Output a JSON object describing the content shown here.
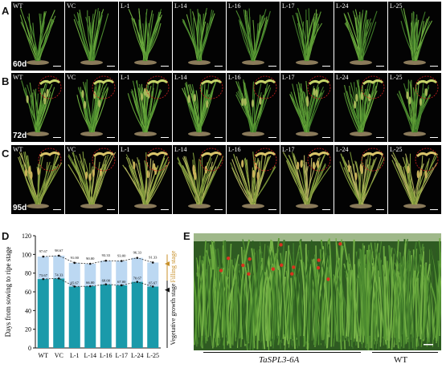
{
  "panels": {
    "A": {
      "letter": "A",
      "day": "60d",
      "labels": [
        "WT",
        "VC",
        "L-1",
        "L-14",
        "L-16",
        "L-17",
        "L-24",
        "L-25"
      ]
    },
    "B": {
      "letter": "B",
      "day": "72d",
      "labels": [
        "WT",
        "VC",
        "L-1",
        "L-14",
        "L-16",
        "L-17",
        "L-24",
        "L-25"
      ]
    },
    "C": {
      "letter": "C",
      "day": "95d",
      "labels": [
        "WT",
        "VC",
        "L-1",
        "L-14",
        "L-16",
        "L-17",
        "L-24",
        "L-25"
      ]
    },
    "D": {
      "letter": "D"
    },
    "E": {
      "letter": "E",
      "caption_left": "TaSPL3-6A",
      "caption_right": "WT"
    }
  },
  "chart_data": {
    "type": "bar",
    "stacked": true,
    "categories": [
      "WT",
      "VC",
      "L-1",
      "L-14",
      "L-16",
      "L-17",
      "L-24",
      "L-25"
    ],
    "series": [
      {
        "name": "Vegetative growth stage",
        "values": [
          73.67,
          74.33,
          65.67,
          66.0,
          68.0,
          67.0,
          70.67,
          65.67
        ],
        "color": "#1a9aaa"
      },
      {
        "name": "Filling stage",
        "values": [
          24.0,
          24.34,
          25.33,
          24.0,
          25.33,
          26.0,
          25.66,
          25.66
        ],
        "color": "#bcd8f2"
      }
    ],
    "top_labels": [
      "97.67",
      "98.67",
      "91.00",
      "90.00",
      "93.33",
      "93.00",
      "96.33",
      "91.33"
    ],
    "bottom_labels": [
      "73.67",
      "74.33",
      "65.67",
      "66.00",
      "68.00",
      "67.00",
      "70.67",
      "65.67"
    ],
    "ylabel": "Days from sowing to ripe stage",
    "yticks": [
      0,
      20,
      40,
      60,
      80,
      100,
      120
    ],
    "ylim": [
      0,
      120
    ],
    "right_labels": {
      "filling": "Filling stage",
      "vegetative": "Vegetative growth stage"
    },
    "right_label_colors": {
      "filling": "#c8902a",
      "vegetative": "#111111"
    }
  }
}
